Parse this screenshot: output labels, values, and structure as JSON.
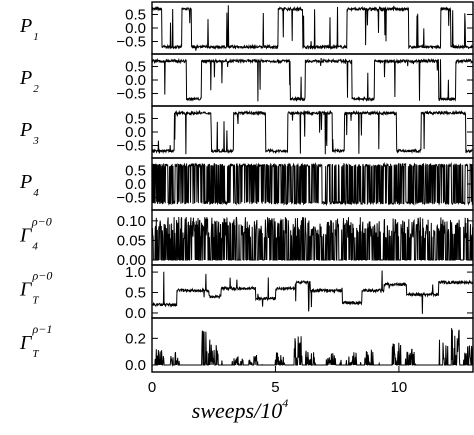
{
  "chart_data": {
    "type": "line",
    "xlabel": "sweeps/10",
    "xlabel_sup": "4",
    "xlim": [
      0,
      13
    ],
    "xticks": [
      0,
      5,
      10
    ],
    "xtick_labels": [
      "0",
      "5",
      "10"
    ],
    "panels": [
      {
        "key": "p1",
        "label": "P",
        "label_sub": "1",
        "label_sup": "",
        "ylim": [
          -0.85,
          0.85
        ],
        "yticks": [
          0.5,
          0.0,
          -0.5
        ],
        "ytick_labels": [
          "0.5",
          "0.0",
          "−0.5"
        ],
        "segments": [
          [
            0,
            0.4,
            0.7
          ],
          [
            0.4,
            1.2,
            -0.7
          ],
          [
            1.2,
            1.6,
            0.7
          ],
          [
            1.6,
            5.1,
            -0.7
          ],
          [
            5.1,
            6.1,
            0.7
          ],
          [
            6.1,
            7.9,
            -0.7
          ],
          [
            7.9,
            10.4,
            0.7
          ],
          [
            10.4,
            11.7,
            -0.7
          ],
          [
            11.7,
            12.1,
            0.7
          ],
          [
            12.1,
            13,
            -0.7
          ]
        ]
      },
      {
        "key": "p2",
        "label": "P",
        "label_sub": "2",
        "label_sup": "",
        "ylim": [
          -0.85,
          0.85
        ],
        "yticks": [
          0.5,
          0.0,
          -0.5
        ],
        "ytick_labels": [
          "0.5",
          "0.0",
          "−0.5"
        ],
        "segments": [
          [
            0,
            1.4,
            0.7
          ],
          [
            1.4,
            2.0,
            -0.7
          ],
          [
            2.0,
            5.6,
            0.7
          ],
          [
            5.6,
            6.2,
            -0.7
          ],
          [
            6.2,
            8.1,
            0.7
          ],
          [
            8.1,
            9.0,
            -0.7
          ],
          [
            9.0,
            11.6,
            0.7
          ],
          [
            11.6,
            12.3,
            -0.7
          ],
          [
            12.3,
            13,
            0.7
          ]
        ]
      },
      {
        "key": "p3",
        "label": "P",
        "label_sub": "3",
        "label_sup": "",
        "ylim": [
          -0.85,
          0.85
        ],
        "yticks": [
          0.5,
          0.0,
          -0.5
        ],
        "ytick_labels": [
          "0.5",
          "0.0",
          "−0.5"
        ],
        "segments": [
          [
            0,
            0.9,
            -0.7
          ],
          [
            0.9,
            2.4,
            0.7
          ],
          [
            2.4,
            3.3,
            -0.7
          ],
          [
            3.3,
            4.6,
            0.7
          ],
          [
            4.6,
            5.5,
            -0.7
          ],
          [
            5.5,
            7.3,
            0.7
          ],
          [
            7.3,
            7.8,
            -0.7
          ],
          [
            7.8,
            9.9,
            0.7
          ],
          [
            9.9,
            10.9,
            -0.7
          ],
          [
            10.9,
            12.7,
            0.7
          ],
          [
            12.7,
            13,
            -0.7
          ]
        ]
      },
      {
        "key": "p4",
        "label": "P",
        "label_sub": "4",
        "label_sup": "",
        "ylim": [
          -0.85,
          0.85
        ],
        "yticks": [
          0.5,
          0.0,
          -0.5
        ],
        "ytick_labels": [
          "0.5",
          "0.0",
          "−0.5"
        ],
        "pattern": "rapid_flip",
        "levels": [
          -0.7,
          0.7
        ]
      },
      {
        "key": "g4",
        "label": "Γ",
        "label_sub": "4",
        "label_sup": "ρ−0",
        "ylim": [
          -0.005,
          0.12
        ],
        "yticks": [
          0.1,
          0.05,
          0.0
        ],
        "ytick_labels": [
          "0.10",
          "0.05",
          "0.00"
        ],
        "pattern": "rapid_spikes",
        "levels": [
          0.0,
          0.11
        ]
      },
      {
        "key": "gt0",
        "label": "Γ",
        "label_sub": "T",
        "label_sup": "ρ−0",
        "ylim": [
          -0.05,
          1.1
        ],
        "yticks": [
          1.0,
          0.5,
          0.0
        ],
        "ytick_labels": [
          "1.0",
          "0.5",
          "0.0"
        ],
        "segments": [
          [
            0,
            1.0,
            0.2
          ],
          [
            1.0,
            2.3,
            0.55
          ],
          [
            2.3,
            2.8,
            0.4
          ],
          [
            2.8,
            4.2,
            0.6
          ],
          [
            4.2,
            5.0,
            0.35
          ],
          [
            5.0,
            5.8,
            0.6
          ],
          [
            5.8,
            6.4,
            0.75
          ],
          [
            6.4,
            7.7,
            0.55
          ],
          [
            7.7,
            8.5,
            0.25
          ],
          [
            8.5,
            9.4,
            0.55
          ],
          [
            9.4,
            10.3,
            0.7
          ],
          [
            10.3,
            11.6,
            0.45
          ],
          [
            11.6,
            13,
            0.75
          ]
        ]
      },
      {
        "key": "gt1",
        "label": "Γ",
        "label_sub": "T",
        "label_sup": "ρ−1",
        "ylim": [
          -0.03,
          0.33
        ],
        "yticks": [
          0.2,
          0.0
        ],
        "ytick_labels": [
          "0.2",
          "0.0"
        ],
        "pattern": "sparse_spikes",
        "bursts": [
          [
            0.3,
            0.12
          ],
          [
            0.9,
            0.1
          ],
          [
            2.2,
            0.28
          ],
          [
            2.5,
            0.2
          ],
          [
            3.5,
            0.08
          ],
          [
            4.1,
            0.1
          ],
          [
            5.2,
            0.1
          ],
          [
            5.9,
            0.22
          ],
          [
            6.4,
            0.12
          ],
          [
            7.3,
            0.09
          ],
          [
            8.1,
            0.1
          ],
          [
            8.8,
            0.14
          ],
          [
            9.9,
            0.18
          ],
          [
            10.5,
            0.12
          ],
          [
            11.8,
            0.2
          ],
          [
            12.3,
            0.28
          ],
          [
            12.8,
            0.15
          ]
        ]
      }
    ]
  }
}
